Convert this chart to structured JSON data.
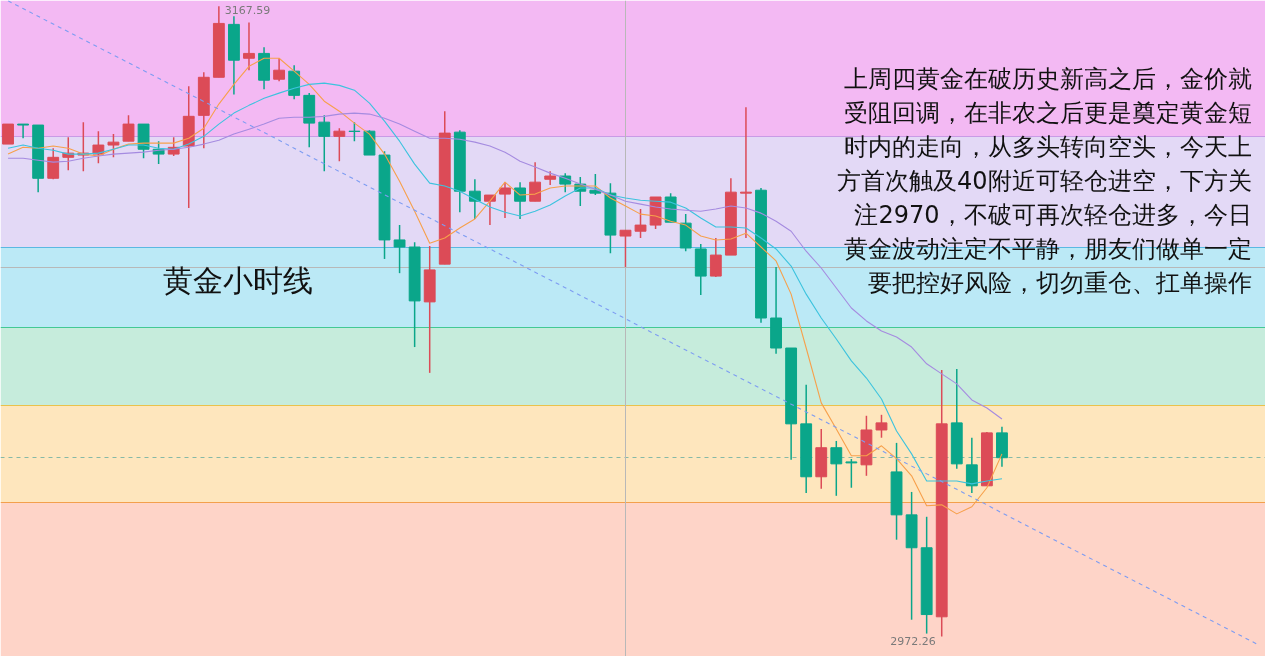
{
  "chart_data": {
    "type": "candlestick",
    "categories": [
      null,
      null,
      null,
      null,
      null,
      null,
      null,
      null,
      null,
      null,
      null,
      null,
      null,
      null,
      null,
      null,
      null,
      null,
      null,
      null,
      null,
      null,
      null,
      null,
      null,
      null,
      null,
      null,
      null,
      null,
      null,
      null,
      null,
      null,
      null,
      null,
      null,
      null,
      null,
      null,
      null,
      null,
      null,
      null,
      null,
      null,
      null,
      null,
      null,
      null,
      null,
      null,
      null,
      null,
      null,
      null,
      null,
      null,
      null,
      null,
      null,
      null,
      null,
      null,
      null,
      null,
      null,
      null,
      null,
      null,
      null,
      null,
      null,
      null,
      null,
      null,
      null,
      null,
      null,
      null,
      null,
      null,
      null,
      null
    ],
    "ohlc": [
      [
        3124.9,
        3131.1,
        3124.9,
        3131.1
      ],
      [
        3131.1,
        3131.1,
        3126.7,
        3130.8
      ],
      [
        3130.8,
        3130.8,
        3110.0,
        3114.3
      ],
      [
        3114.3,
        3123.6,
        3114.0,
        3120.8
      ],
      [
        3120.8,
        3127.0,
        3116.8,
        3122.1
      ],
      [
        3121.5,
        3131.7,
        3116.5,
        3122.1
      ],
      [
        3121.8,
        3128.9,
        3119.0,
        3124.6
      ],
      [
        3124.6,
        3128.0,
        3120.8,
        3125.5
      ],
      [
        3125.8,
        3133.8,
        3125.8,
        3131.1
      ],
      [
        3131.1,
        3131.1,
        3120.5,
        3123.3
      ],
      [
        3123.3,
        3125.8,
        3118.7,
        3121.8
      ],
      [
        3121.8,
        3127.0,
        3121.2,
        3123.9
      ],
      [
        3124.3,
        3142.8,
        3105.1,
        3133.5
      ],
      [
        3133.8,
        3147.2,
        3123.6,
        3145.6
      ],
      [
        3145.6,
        3167.59,
        3145.6,
        3162.3
      ],
      [
        3162.0,
        3164.5,
        3140.3,
        3150.9
      ],
      [
        3151.5,
        3162.6,
        3147.8,
        3153.0
      ],
      [
        3153.0,
        3154.9,
        3141.9,
        3144.7
      ],
      [
        3145.0,
        3151.5,
        3144.4,
        3147.8
      ],
      [
        3147.5,
        3149.3,
        3138.8,
        3140.0
      ],
      [
        3140.0,
        3140.7,
        3123.9,
        3131.4
      ],
      [
        3131.7,
        3133.8,
        3116.5,
        3127.3
      ],
      [
        3127.3,
        3129.8,
        3119.6,
        3128.9
      ],
      [
        3128.9,
        3131.7,
        3125.8,
        3128.8
      ],
      [
        3128.9,
        3129.2,
        3121.5,
        3121.5
      ],
      [
        3121.5,
        3122.7,
        3089.3,
        3095.2
      ],
      [
        3095.2,
        3099.8,
        3084.9,
        3093.0
      ],
      [
        3093.0,
        3094.5,
        3062.0,
        3076.3
      ],
      [
        3076.0,
        3093.3,
        3054.0,
        3085.9
      ],
      [
        3087.7,
        3135.1,
        3087.7,
        3128.3
      ],
      [
        3128.6,
        3129.2,
        3103.8,
        3110.3
      ],
      [
        3110.3,
        3114.0,
        3101.7,
        3107.2
      ],
      [
        3107.2,
        3109.1,
        3099.8,
        3109.1
      ],
      [
        3109.4,
        3113.1,
        3102.0,
        3111.3
      ],
      [
        3111.3,
        3113.1,
        3101.7,
        3107.2
      ],
      [
        3107.2,
        3119.3,
        3107.2,
        3113.1
      ],
      [
        3114.0,
        3116.5,
        3112.2,
        3115.0
      ],
      [
        3115.0,
        3115.9,
        3110.0,
        3112.5
      ],
      [
        3112.5,
        3114.7,
        3105.7,
        3110.3
      ],
      [
        3110.6,
        3115.6,
        3109.1,
        3109.7
      ],
      [
        3109.7,
        3112.8,
        3091.1,
        3096.7
      ],
      [
        3096.4,
        3098.2,
        3086.8,
        3098.2
      ],
      [
        3097.9,
        3104.8,
        3095.8,
        3099.8
      ],
      [
        3099.8,
        3108.5,
        3098.6,
        3108.5
      ],
      [
        3108.5,
        3109.7,
        3100.7,
        3100.7
      ],
      [
        3100.4,
        3103.2,
        3091.7,
        3092.7
      ],
      [
        3092.4,
        3093.9,
        3078.1,
        3084.0
      ],
      [
        3084.0,
        3095.8,
        3083.7,
        3090.5
      ],
      [
        3090.5,
        3114.3,
        3090.5,
        3110.0
      ],
      [
        3109.7,
        3136.3,
        3095.8,
        3110.0
      ],
      [
        3110.6,
        3111.3,
        3069.5,
        3071.0
      ],
      [
        3071.0,
        3086.8,
        3059.9,
        3061.7
      ],
      [
        3061.7,
        3061.7,
        3027.1,
        3038.2
      ],
      [
        3038.2,
        3050.3,
        3016.8,
        3021.8
      ],
      [
        3021.8,
        3036.6,
        3018.1,
        3030.8
      ],
      [
        3030.8,
        3032.9,
        3015.9,
        3025.8
      ],
      [
        3026.4,
        3027.3,
        3018.4,
        3026.1
      ],
      [
        3025.5,
        3040.7,
        3022.1,
        3036.3
      ],
      [
        3036.3,
        3041.0,
        3033.9,
        3038.5
      ],
      [
        3023.3,
        3032.3,
        3002.3,
        3010.0
      ],
      [
        3010.0,
        3017.1,
        2977.5,
        2999.8
      ],
      [
        2999.8,
        3009.4,
        2973.2,
        2979.1
      ],
      [
        2978.4,
        3054.9,
        2972.26,
        3038.2
      ],
      [
        3038.5,
        3055.2,
        3024.3,
        3025.8
      ],
      [
        3025.5,
        3033.9,
        3016.8,
        3019.0
      ],
      [
        3019.0,
        3035.7,
        3019.0,
        3035.4
      ],
      [
        3035.4,
        3037.3,
        3024.9,
        3027.7
      ],
      null,
      null,
      null,
      null,
      null,
      null,
      null,
      null,
      null,
      null,
      null,
      null,
      null,
      null,
      null,
      null,
      null
    ],
    "colors": [
      "#dc4b57",
      "#0aa68a",
      "#0aa68a",
      "#dc4b57",
      "#dc4b57",
      "#dc4b57",
      "#dc4b57",
      "#dc4b57",
      "#dc4b57",
      "#0aa68a",
      "#0aa68a",
      "#dc4b57",
      "#dc4b57",
      "#dc4b57",
      "#dc4b57",
      "#0aa68a",
      "#dc4b57",
      "#0aa68a",
      "#dc4b57",
      "#0aa68a",
      "#0aa68a",
      "#0aa68a",
      "#dc4b57",
      "#0aa68a",
      "#0aa68a",
      "#0aa68a",
      "#0aa68a",
      "#0aa68a",
      "#dc4b57",
      "#dc4b57",
      "#0aa68a",
      "#0aa68a",
      "#dc4b57",
      "#dc4b57",
      "#0aa68a",
      "#dc4b57",
      "#dc4b57",
      "#0aa68a",
      "#0aa68a",
      "#0aa68a",
      "#0aa68a",
      "#dc4b57",
      "#dc4b57",
      "#dc4b57",
      "#0aa68a",
      "#0aa68a",
      "#0aa68a",
      "#dc4b57",
      "#dc4b57",
      "#dc4b57",
      "#0aa68a",
      "#0aa68a",
      "#0aa68a",
      "#0aa68a",
      "#dc4b57",
      "#0aa68a",
      "#0aa68a",
      "#dc4b57",
      "#dc4b57",
      "#0aa68a",
      "#0aa68a",
      "#0aa68a",
      "#dc4b57",
      "#0aa68a",
      "#0aa68a",
      "#dc4b57",
      "#0aa68a",
      null,
      null,
      null,
      null,
      null,
      null,
      null,
      null,
      null,
      null,
      null,
      null,
      null,
      null,
      null,
      null,
      null
    ],
    "series": [
      {
        "type": "line",
        "color": "#f7a04b",
        "values": [
          3121.8,
          3123.9,
          3123.6,
          3124.3,
          3123.6,
          3121.8,
          3121.2,
          3123.3,
          3124.9,
          3125.2,
          3125.2,
          3125.2,
          3126.7,
          3129.8,
          3137.3,
          3143.4,
          3149.0,
          3151.5,
          3151.5,
          3147.5,
          3143.4,
          3138.2,
          3135.1,
          3131.4,
          3128.0,
          3121.8,
          3113.4,
          3104.1,
          3094.2,
          3095.8,
          3098.9,
          3101.7,
          3107.2,
          3113.1,
          3109.1,
          3109.4,
          3111.3,
          3111.9,
          3111.9,
          3111.9,
          3108.2,
          3105.7,
          3103.2,
          3102.6,
          3101.0,
          3099.8,
          3096.4,
          3095.2,
          3095.5,
          3097.3,
          3093.0,
          3088.7,
          3078.4,
          3061.7,
          3044.7,
          3036.6,
          3028.3,
          3028.3,
          3031.4,
          3027.4,
          3022.1,
          3012.8,
          3013.1,
          3010.3,
          3012.5,
          3018.4,
          3028.9,
          null,
          null,
          null,
          null,
          null,
          null,
          null,
          null,
          null,
          null,
          null,
          null,
          null,
          null,
          null,
          null,
          null
        ]
      },
      {
        "type": "line",
        "color": "#3cc3de",
        "values": [
          3123.6,
          3124.6,
          3123.6,
          3123.0,
          3121.8,
          3121.8,
          3122.1,
          3123.3,
          3124.6,
          3124.6,
          3123.6,
          3123.3,
          3124.9,
          3127.3,
          3131.1,
          3134.5,
          3136.9,
          3139.1,
          3140.7,
          3142.2,
          3143.4,
          3143.8,
          3143.1,
          3141.6,
          3137.6,
          3132.0,
          3125.8,
          3118.7,
          3112.8,
          3111.9,
          3110.3,
          3107.8,
          3105.4,
          3103.8,
          3102.6,
          3104.1,
          3106.0,
          3108.8,
          3111.3,
          3111.3,
          3109.1,
          3108.2,
          3107.5,
          3107.2,
          3106.9,
          3105.1,
          3102.0,
          3099.2,
          3099.2,
          3098.9,
          3095.8,
          3092.4,
          3087.1,
          3078.4,
          3071.0,
          3064.5,
          3057.7,
          3052.4,
          3045.9,
          3036.0,
          3028.9,
          3020.5,
          3020.5,
          3020.5,
          3019.6,
          3020.5,
          3021.2,
          null,
          null,
          null,
          null,
          null,
          null,
          null,
          null,
          null,
          null,
          null,
          null,
          null,
          null,
          null,
          null,
          null
        ]
      },
      {
        "type": "line",
        "color": "#a58be0",
        "values": [
          3120.5,
          3120.5,
          3119.9,
          3119.3,
          3119.6,
          3120.5,
          3121.2,
          3121.8,
          3122.1,
          3122.4,
          3123.0,
          3123.3,
          3123.9,
          3124.9,
          3126.1,
          3128.0,
          3129.5,
          3131.1,
          3132.9,
          3133.2,
          3133.2,
          3133.5,
          3134.2,
          3134.5,
          3134.2,
          3132.9,
          3131.1,
          3128.9,
          3126.7,
          3126.7,
          3126.4,
          3125.5,
          3124.3,
          3122.4,
          3119.6,
          3117.8,
          3115.9,
          3114.3,
          3112.5,
          3110.9,
          3109.1,
          3107.2,
          3106.3,
          3105.4,
          3104.8,
          3104.4,
          3104.1,
          3104.8,
          3105.7,
          3105.1,
          3103.5,
          3101.0,
          3097.9,
          3091.7,
          3086.5,
          3080.3,
          3074.1,
          3070.1,
          3067.0,
          3065.1,
          3062.0,
          3056.8,
          3053.7,
          3050.6,
          3045.6,
          3043.1,
          3039.7,
          null,
          null,
          null,
          null,
          null,
          null,
          null,
          null,
          null,
          null,
          null,
          null,
          null,
          null,
          null,
          null,
          null
        ]
      },
      {
        "type": "line",
        "color": "#7d9cf2",
        "line_style": "dashed",
        "values": [
          3169.3,
          3166.9,
          3164.5,
          3162.1,
          3159.7,
          3157.3,
          3154.9,
          3152.5,
          3150.1,
          3147.7,
          3145.3,
          3142.9,
          3140.5,
          3138.1,
          3135.7,
          3133.3,
          3130.9,
          3128.5,
          3126.1,
          3123.6,
          3121.2,
          3118.8,
          3116.4,
          3114.0,
          3111.6,
          3109.2,
          3106.8,
          3104.4,
          3102.0,
          3099.6,
          3097.2,
          3094.8,
          3092.4,
          3090.0,
          3087.6,
          3085.2,
          3082.8,
          3080.4,
          3078.0,
          3075.6,
          3073.2,
          3070.8,
          3068.3,
          3065.9,
          3063.5,
          3061.1,
          3058.7,
          3056.3,
          3053.9,
          3051.5,
          3049.1,
          3046.7,
          3044.3,
          3041.9,
          3039.5,
          3037.1,
          3034.7,
          3032.3,
          3029.9,
          3027.5,
          3025.1,
          3022.7,
          3020.3,
          3017.9,
          3015.5,
          3013.1,
          3010.6,
          3008.2,
          3005.8,
          3003.4,
          3001.0,
          2998.6,
          2996.2,
          2993.8,
          2991.4,
          2989.0,
          2986.6,
          2984.2,
          2981.8,
          2979.4,
          2977.0,
          2974.6,
          2972.2,
          2969.8
        ]
      }
    ],
    "ylim": [
      2966.1,
      3169.4
    ],
    "tick_labels": false,
    "bands": [
      {
        "axis": "y",
        "from": 3127.3,
        "to": 3169.4,
        "color": "#f3b9f3"
      },
      {
        "axis": "y",
        "from": 3092.7,
        "to": 3127.3,
        "color": "#e3d9f6"
      },
      {
        "axis": "y",
        "from": 3068.2,
        "to": 3092.7,
        "color": "#bbe9f6"
      },
      {
        "axis": "y",
        "from": 3043.8,
        "to": 3068.2,
        "color": "#c6ecdc"
      },
      {
        "axis": "y",
        "from": 3013.7,
        "to": 3043.8,
        "color": "#fee6bd"
      },
      {
        "axis": "y",
        "from": 2966.1,
        "to": 3013.7,
        "color": "#fed4c8"
      }
    ],
    "ref_lines": [
      {
        "axis": "y",
        "value": 3127.3,
        "color": "#c99be6"
      },
      {
        "axis": "y",
        "value": 3092.7,
        "color": "#5ab9e2"
      },
      {
        "axis": "y",
        "value": 3068.2,
        "color": "#43c994"
      },
      {
        "axis": "y",
        "value": 3043.8,
        "color": "#e9c24c"
      },
      {
        "axis": "y",
        "value": 3013.7,
        "color": "#f3a04c"
      },
      {
        "axis": "y",
        "value": 3086.8,
        "color": "#b8b8b8"
      },
      {
        "axis": "y",
        "value": 3027.7,
        "color": "#86b9a6",
        "line_style": "dashed"
      }
    ],
    "annotations": [
      "黄金小时线",
      "上周四黄金在破历史新高之后，金价就受阻回调，在非农之后更是奠定黄金短时内的走向，从多头转向空头，今天上方首次触及40附近可轻仓进空，下方关注2970，不破可再次轻仓进多，今日黄金波动注定不平静，朋友们做单一定要把控好风险，切勿重仓、扛单操作",
      "3167.59",
      "2972.26"
    ]
  }
}
